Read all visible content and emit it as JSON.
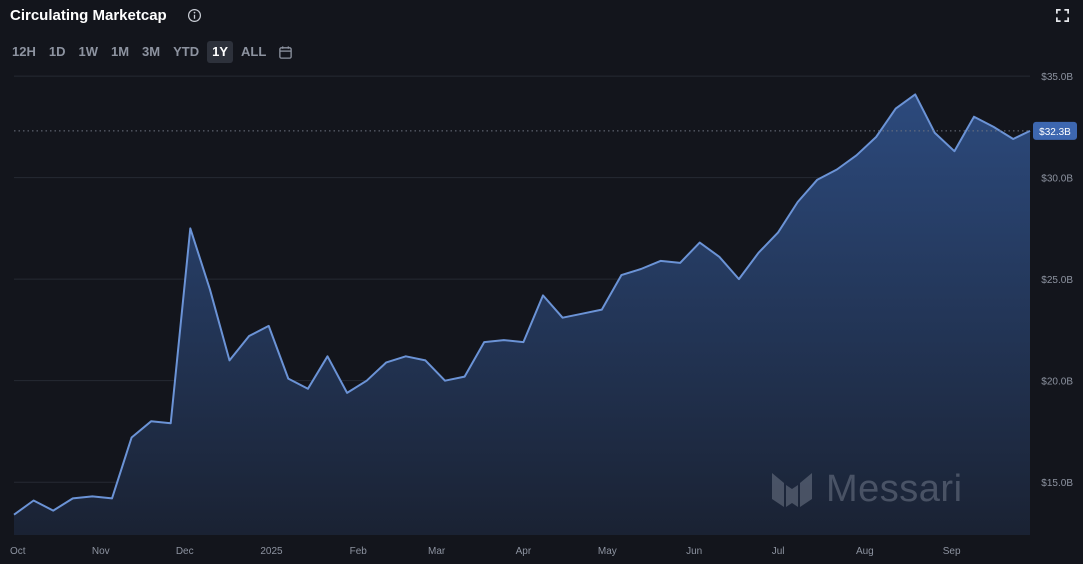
{
  "header": {
    "title": "Circulating Marketcap",
    "info_icon": "info-circle-icon",
    "expand_icon": "fullscreen-icon"
  },
  "ranges": {
    "items": [
      "12H",
      "1D",
      "1W",
      "1M",
      "3M",
      "YTD",
      "1Y",
      "ALL"
    ],
    "selected": "1Y",
    "calendar_icon": "calendar-icon"
  },
  "watermark": {
    "text": "Messari"
  },
  "colors": {
    "background": "#13151c",
    "line": "#6b93d6",
    "area_top": "#2c4a7d",
    "grid": "#262a33",
    "current_badge": "#3d67b0",
    "text_muted": "#8d93a0"
  },
  "chart_data": {
    "type": "area",
    "title": "Circulating Marketcap",
    "xlabel": "",
    "ylabel": "",
    "x_ticks": [
      "Oct",
      "Nov",
      "Dec",
      "2025",
      "Feb",
      "Mar",
      "Apr",
      "May",
      "Jun",
      "Jul",
      "Aug",
      "Sep"
    ],
    "y_ticks": [
      "$15.0B",
      "$20.0B",
      "$25.0B",
      "$30.0B",
      "$35.0B"
    ],
    "y_tick_values": [
      15,
      20,
      25,
      30,
      35
    ],
    "ylim": [
      12.4,
      35.3
    ],
    "y_units": "billion USD",
    "x_start": "2024-10-01",
    "x_end": "2025-09-29",
    "grid": "horizontal",
    "current_value_label": "$32.3B",
    "current_value": 32.3,
    "series": [
      {
        "x": [
          "2024-10-01",
          "2024-10-08",
          "2024-10-15",
          "2024-10-22",
          "2024-10-29",
          "2024-11-05",
          "2024-11-12",
          "2024-11-19",
          "2024-11-26",
          "2024-12-03",
          "2024-12-10",
          "2024-12-17",
          "2024-12-24",
          "2024-12-31",
          "2025-01-07",
          "2025-01-14",
          "2025-01-21",
          "2025-01-28",
          "2025-02-04",
          "2025-02-11",
          "2025-02-18",
          "2025-02-25",
          "2025-03-04",
          "2025-03-11",
          "2025-03-18",
          "2025-03-25",
          "2025-04-01",
          "2025-04-08",
          "2025-04-15",
          "2025-04-22",
          "2025-04-29",
          "2025-05-06",
          "2025-05-13",
          "2025-05-20",
          "2025-05-27",
          "2025-06-03",
          "2025-06-10",
          "2025-06-17",
          "2025-06-24",
          "2025-07-01",
          "2025-07-08",
          "2025-07-15",
          "2025-07-22",
          "2025-07-29",
          "2025-08-05",
          "2025-08-12",
          "2025-08-19",
          "2025-08-26",
          "2025-09-02",
          "2025-09-09",
          "2025-09-16",
          "2025-09-23",
          "2025-09-29"
        ],
        "values": [
          13.4,
          14.1,
          13.6,
          14.2,
          14.3,
          14.2,
          17.2,
          18.0,
          17.9,
          27.5,
          24.5,
          21.0,
          22.2,
          22.7,
          20.1,
          19.6,
          21.2,
          19.4,
          20.0,
          20.9,
          21.2,
          21.0,
          20.0,
          20.2,
          21.9,
          22.0,
          21.9,
          24.2,
          23.1,
          23.3,
          23.5,
          25.2,
          25.5,
          25.9,
          25.8,
          26.8,
          26.1,
          25.0,
          26.3,
          27.3,
          28.8,
          29.9,
          30.4,
          31.1,
          32.0,
          33.4,
          34.1,
          32.2,
          31.3,
          33.0,
          32.5,
          31.9,
          32.3
        ]
      }
    ]
  }
}
